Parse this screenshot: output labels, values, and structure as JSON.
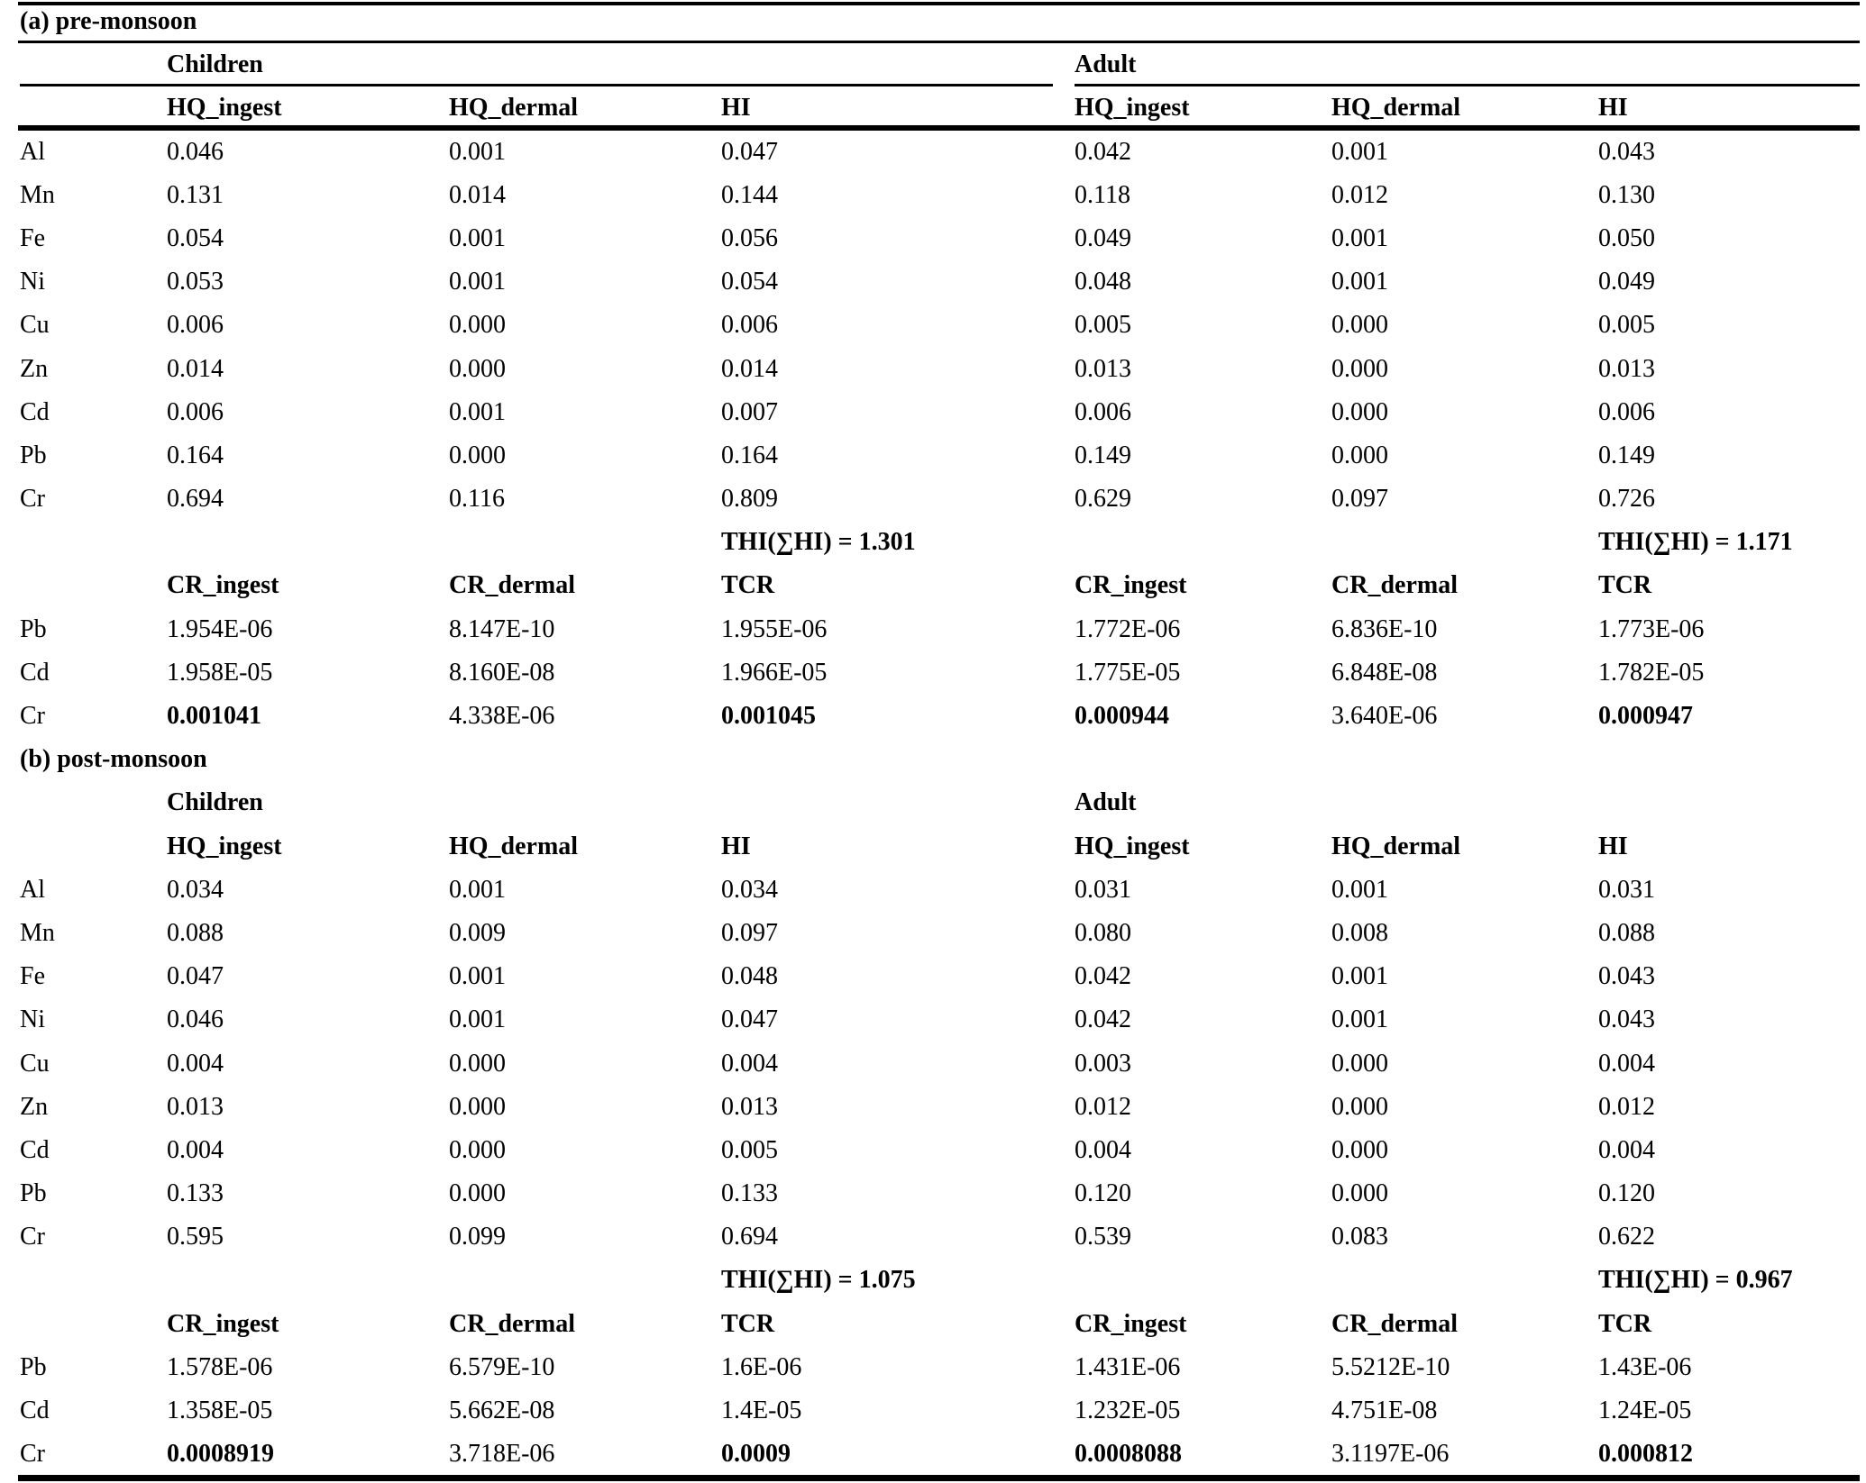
{
  "colors": {
    "text": "#000000",
    "background": "#ffffff",
    "rule": "#000000"
  },
  "sections": [
    {
      "title": "(a) pre-monsoon",
      "group_headers": {
        "children": "Children",
        "adult": "Adult"
      },
      "hq_columns": [
        "HQ_ingest",
        "HQ_dermal",
        "HI"
      ],
      "hq_rows": [
        {
          "label": "Al",
          "children": [
            "0.046",
            "0.001",
            "0.047"
          ],
          "adult": [
            "0.042",
            "0.001",
            "0.043"
          ]
        },
        {
          "label": "Mn",
          "children": [
            "0.131",
            "0.014",
            "0.144"
          ],
          "adult": [
            "0.118",
            "0.012",
            "0.130"
          ]
        },
        {
          "label": "Fe",
          "children": [
            "0.054",
            "0.001",
            "0.056"
          ],
          "adult": [
            "0.049",
            "0.001",
            "0.050"
          ]
        },
        {
          "label": "Ni",
          "children": [
            "0.053",
            "0.001",
            "0.054"
          ],
          "adult": [
            "0.048",
            "0.001",
            "0.049"
          ]
        },
        {
          "label": "Cu",
          "children": [
            "0.006",
            "0.000",
            "0.006"
          ],
          "adult": [
            "0.005",
            "0.000",
            "0.005"
          ]
        },
        {
          "label": "Zn",
          "children": [
            "0.014",
            "0.000",
            "0.014"
          ],
          "adult": [
            "0.013",
            "0.000",
            "0.013"
          ]
        },
        {
          "label": "Cd",
          "children": [
            "0.006",
            "0.001",
            "0.007"
          ],
          "adult": [
            "0.006",
            "0.000",
            "0.006"
          ]
        },
        {
          "label": "Pb",
          "children": [
            "0.164",
            "0.000",
            "0.164"
          ],
          "adult": [
            "0.149",
            "0.000",
            "0.149"
          ]
        },
        {
          "label": "Cr",
          "children": [
            "0.694",
            "0.116",
            "0.809"
          ],
          "adult": [
            "0.629",
            "0.097",
            "0.726"
          ]
        }
      ],
      "thi": {
        "children": "THI(∑HI) = 1.301",
        "adult": "THI(∑HI) = 1.171"
      },
      "cr_columns": [
        "CR_ingest",
        "CR_dermal",
        "TCR"
      ],
      "cr_rows": [
        {
          "label": "Pb",
          "children": [
            "1.954E-06",
            "8.147E-10",
            "1.955E-06"
          ],
          "adult": [
            "1.772E-06",
            "6.836E-10",
            "1.773E-06"
          ]
        },
        {
          "label": "Cd",
          "children": [
            "1.958E-05",
            "8.160E-08",
            "1.966E-05"
          ],
          "adult": [
            "1.775E-05",
            "6.848E-08",
            "1.782E-05"
          ]
        },
        {
          "label": "Cr",
          "children": [
            "0.001041",
            "4.338E-06",
            "0.001045"
          ],
          "adult": [
            "0.000944",
            "3.640E-06",
            "0.000947"
          ],
          "bold_children": [
            0,
            2
          ],
          "bold_adult": [
            0,
            2
          ]
        }
      ]
    },
    {
      "title": "(b) post-monsoon",
      "group_headers": {
        "children": "Children",
        "adult": "Adult"
      },
      "hq_columns": [
        "HQ_ingest",
        "HQ_dermal",
        "HI"
      ],
      "hq_rows": [
        {
          "label": "Al",
          "children": [
            "0.034",
            "0.001",
            "0.034"
          ],
          "adult": [
            "0.031",
            "0.001",
            "0.031"
          ]
        },
        {
          "label": "Mn",
          "children": [
            "0.088",
            "0.009",
            "0.097"
          ],
          "adult": [
            "0.080",
            "0.008",
            "0.088"
          ]
        },
        {
          "label": "Fe",
          "children": [
            "0.047",
            "0.001",
            "0.048"
          ],
          "adult": [
            "0.042",
            "0.001",
            "0.043"
          ]
        },
        {
          "label": "Ni",
          "children": [
            "0.046",
            "0.001",
            "0.047"
          ],
          "adult": [
            "0.042",
            "0.001",
            "0.043"
          ]
        },
        {
          "label": "Cu",
          "children": [
            "0.004",
            "0.000",
            "0.004"
          ],
          "adult": [
            "0.003",
            "0.000",
            "0.004"
          ]
        },
        {
          "label": "Zn",
          "children": [
            "0.013",
            "0.000",
            "0.013"
          ],
          "adult": [
            "0.012",
            "0.000",
            "0.012"
          ]
        },
        {
          "label": "Cd",
          "children": [
            "0.004",
            "0.000",
            "0.005"
          ],
          "adult": [
            "0.004",
            "0.000",
            "0.004"
          ]
        },
        {
          "label": "Pb",
          "children": [
            "0.133",
            "0.000",
            "0.133"
          ],
          "adult": [
            "0.120",
            "0.000",
            "0.120"
          ]
        },
        {
          "label": "Cr",
          "children": [
            "0.595",
            "0.099",
            "0.694"
          ],
          "adult": [
            "0.539",
            "0.083",
            "0.622"
          ]
        }
      ],
      "thi": {
        "children": "THI(∑HI) = 1.075",
        "adult": "THI(∑HI) = 0.967"
      },
      "cr_columns": [
        "CR_ingest",
        "CR_dermal",
        "TCR"
      ],
      "cr_rows": [
        {
          "label": "Pb",
          "children": [
            "1.578E-06",
            "6.579E-10",
            "1.6E-06"
          ],
          "adult": [
            "1.431E-06",
            "5.5212E-10",
            "1.43E-06"
          ]
        },
        {
          "label": "Cd",
          "children": [
            "1.358E-05",
            "5.662E-08",
            "1.4E-05"
          ],
          "adult": [
            "1.232E-05",
            "4.751E-08",
            "1.24E-05"
          ]
        },
        {
          "label": "Cr",
          "children": [
            "0.0008919",
            "3.718E-06",
            "0.0009"
          ],
          "adult": [
            "0.0008088",
            "3.1197E-06",
            "0.000812"
          ],
          "bold_children": [
            0,
            2
          ],
          "bold_adult": [
            0,
            2
          ]
        }
      ]
    }
  ]
}
